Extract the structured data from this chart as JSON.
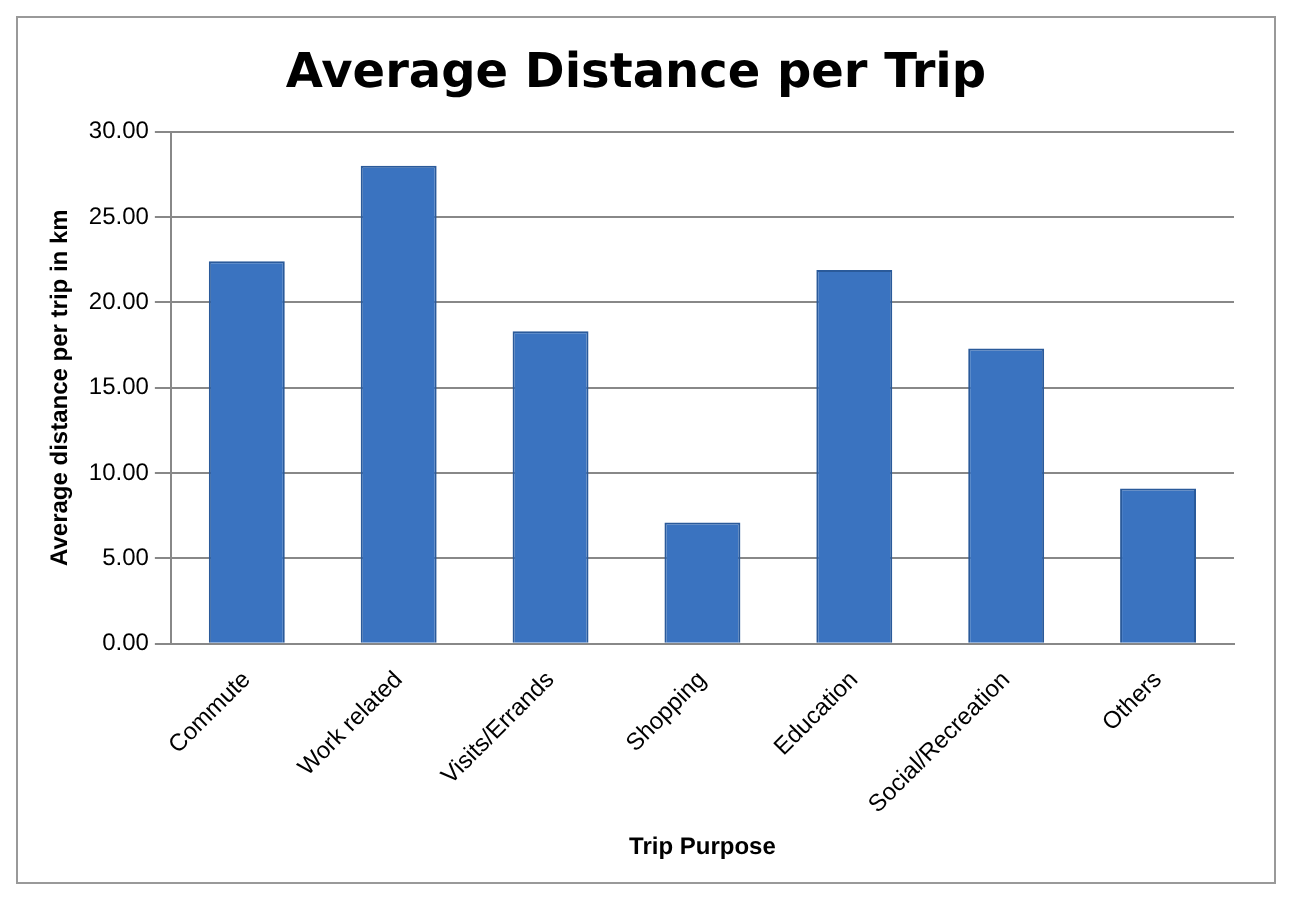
{
  "chart_data": {
    "type": "bar",
    "title": "Average Distance per Trip",
    "xlabel": "Trip Purpose",
    "ylabel": "Average distance per trip in km",
    "categories": [
      "Commute",
      "Work related",
      "Visits/Errands",
      "Shopping",
      "Education",
      "Social/Recreation",
      "Others"
    ],
    "values": [
      22.4,
      28.0,
      18.3,
      7.1,
      21.9,
      17.3,
      9.1
    ],
    "color": "#3a73c0",
    "ylim": [
      0,
      30
    ],
    "yticks": [
      {
        "value": 0,
        "label": "0.00"
      },
      {
        "value": 5,
        "label": "5.00"
      },
      {
        "value": 10,
        "label": "10.00"
      },
      {
        "value": 15,
        "label": "15.00"
      },
      {
        "value": 20,
        "label": "20.00"
      },
      {
        "value": 25,
        "label": "25.00"
      },
      {
        "value": 30,
        "label": "30.00"
      }
    ],
    "grid": "y",
    "legend": false
  }
}
